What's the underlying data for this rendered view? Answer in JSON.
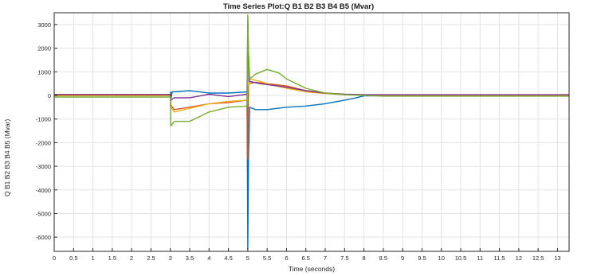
{
  "chart_data": {
    "type": "line",
    "title": "Time Series Plot:Q B1 B2 B3 B4 B5 (Mvar)",
    "xlabel": "Time (seconds)",
    "ylabel": "Q B1 B2 B3 B4 B5 (Mvar)",
    "xlim": [
      0,
      13.3
    ],
    "ylim": [
      -6600,
      3500
    ],
    "grid": true,
    "xticks": [
      0,
      0.5,
      1,
      1.5,
      2,
      2.5,
      3,
      3.5,
      4,
      4.5,
      5,
      5.5,
      6,
      6.5,
      7,
      7.5,
      8,
      8.5,
      9,
      9.5,
      10,
      10.5,
      11,
      11.5,
      12,
      12.5,
      13
    ],
    "xtick_labels": [
      "0",
      "0.5",
      "1",
      "1.5",
      "2",
      "2.5",
      "3",
      "3.5",
      "4",
      "4.5",
      "5",
      "5.5",
      "6",
      "6.5",
      "7",
      "7.5",
      "8",
      "8.5",
      "9",
      "9.5",
      "10",
      "10.5",
      "11",
      "11.5",
      "12",
      "12.5",
      "13"
    ],
    "yticks": [
      -6000,
      -5000,
      -4000,
      -3000,
      -2000,
      -1000,
      0,
      1000,
      2000,
      3000
    ],
    "ytick_labels": [
      "-6000",
      "-5000",
      "-4000",
      "-3000",
      "-2000",
      "-1000",
      "0",
      "1000",
      "2000",
      "3000"
    ],
    "series": [
      {
        "color": "#0072BD",
        "points": [
          [
            0,
            20
          ],
          [
            3,
            20
          ],
          [
            3.01,
            150
          ],
          [
            3.02,
            -100
          ],
          [
            3.05,
            150
          ],
          [
            3.5,
            200
          ],
          [
            4.0,
            100
          ],
          [
            4.5,
            100
          ],
          [
            4.98,
            150
          ],
          [
            5.0,
            -6500
          ],
          [
            5.02,
            -2500
          ],
          [
            5.05,
            -500
          ],
          [
            5.2,
            -600
          ],
          [
            5.5,
            -600
          ],
          [
            6,
            -500
          ],
          [
            6.5,
            -450
          ],
          [
            7,
            -350
          ],
          [
            7.5,
            -200
          ],
          [
            7.8,
            -100
          ],
          [
            8.0,
            -20
          ],
          [
            8.5,
            -10
          ],
          [
            13.3,
            -10
          ]
        ]
      },
      {
        "color": "#D95319",
        "points": [
          [
            0,
            40
          ],
          [
            3,
            40
          ],
          [
            3.01,
            -400
          ],
          [
            3.1,
            -600
          ],
          [
            3.5,
            -500
          ],
          [
            4.0,
            -350
          ],
          [
            4.5,
            -300
          ],
          [
            4.98,
            -200
          ],
          [
            5.0,
            -2700
          ],
          [
            5.02,
            500
          ],
          [
            5.2,
            550
          ],
          [
            5.5,
            500
          ],
          [
            6.0,
            400
          ],
          [
            6.5,
            200
          ],
          [
            7,
            100
          ],
          [
            7.5,
            40
          ],
          [
            8.0,
            20
          ],
          [
            13.3,
            20
          ]
        ]
      },
      {
        "color": "#EDB120",
        "points": [
          [
            0,
            -10
          ],
          [
            3,
            -10
          ],
          [
            3.01,
            -500
          ],
          [
            3.1,
            -700
          ],
          [
            3.5,
            -550
          ],
          [
            4.0,
            -350
          ],
          [
            4.5,
            -250
          ],
          [
            4.98,
            -200
          ],
          [
            5.0,
            400
          ],
          [
            5.05,
            700
          ],
          [
            5.3,
            600
          ],
          [
            5.6,
            450
          ],
          [
            6.0,
            300
          ],
          [
            6.5,
            150
          ],
          [
            7,
            80
          ],
          [
            7.5,
            30
          ],
          [
            8.0,
            10
          ],
          [
            13.3,
            10
          ]
        ]
      },
      {
        "color": "#7E2F8E",
        "points": [
          [
            0,
            30
          ],
          [
            3,
            30
          ],
          [
            3.01,
            -200
          ],
          [
            3.1,
            -100
          ],
          [
            3.5,
            -100
          ],
          [
            4.0,
            50
          ],
          [
            4.5,
            -50
          ],
          [
            4.98,
            50
          ],
          [
            5.0,
            3200
          ],
          [
            5.03,
            600
          ],
          [
            5.3,
            500
          ],
          [
            6,
            350
          ],
          [
            6.5,
            200
          ],
          [
            7,
            100
          ],
          [
            7.5,
            50
          ],
          [
            8,
            30
          ],
          [
            13.3,
            30
          ]
        ]
      },
      {
        "color": "#77AC30",
        "points": [
          [
            0,
            -70
          ],
          [
            3,
            -70
          ],
          [
            3.01,
            -1300
          ],
          [
            3.1,
            -1100
          ],
          [
            3.5,
            -1100
          ],
          [
            4.0,
            -700
          ],
          [
            4.5,
            -500
          ],
          [
            4.98,
            -450
          ],
          [
            5.0,
            3400
          ],
          [
            5.02,
            1800
          ],
          [
            5.05,
            700
          ],
          [
            5.2,
            900
          ],
          [
            5.5,
            1100
          ],
          [
            5.8,
            950
          ],
          [
            6.0,
            700
          ],
          [
            6.5,
            300
          ],
          [
            7,
            100
          ],
          [
            7.5,
            30
          ],
          [
            8,
            0
          ],
          [
            8.5,
            -30
          ],
          [
            13.3,
            -30
          ]
        ]
      }
    ]
  }
}
